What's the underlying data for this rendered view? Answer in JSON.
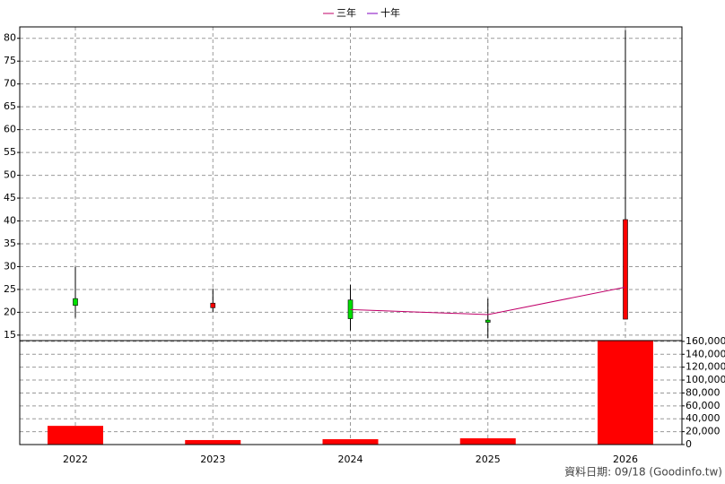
{
  "chart_data": {
    "type": "candlestick",
    "categories": [
      "2022",
      "2023",
      "2024",
      "2025",
      "2026"
    ],
    "open": [
      23,
      21,
      22.7,
      18.3,
      18.5
    ],
    "high": [
      30,
      25.2,
      26,
      23,
      81.8
    ],
    "low": [
      18.8,
      20,
      16,
      14.3,
      18.5
    ],
    "close": [
      21.5,
      22,
      18.6,
      17.8,
      40.3
    ],
    "up_color": "#ff0000",
    "down_color": "#00e000",
    "ylim": [
      13.8,
      82.5
    ],
    "yticks": [
      15,
      20,
      25,
      30,
      35,
      40,
      45,
      50,
      55,
      60,
      65,
      70,
      75,
      80
    ],
    "grid": true,
    "legend": "top",
    "series": [
      {
        "name": "三年",
        "color": "#c0006a",
        "values": [
          null,
          null,
          20.6,
          19.5,
          25.5
        ]
      },
      {
        "name": "十年",
        "color": "#8000c0",
        "values": [
          null,
          null,
          null,
          null,
          null
        ]
      }
    ],
    "volume": {
      "color": "#ff0000",
      "axis": "y2",
      "values": [
        29000,
        7000,
        8300,
        9700,
        162000
      ]
    },
    "y2lim": [
      0,
      164000
    ],
    "y2ticks": [
      0,
      {
        "value": 20000,
        "label": "20,000"
      },
      {
        "value": 40000,
        "label": "40,000"
      },
      {
        "value": 60000,
        "label": "60,000"
      },
      {
        "value": 80000,
        "label": "80,000"
      },
      {
        "value": 100000,
        "label": "100,000"
      },
      {
        "value": 120000,
        "label": "120,000"
      },
      {
        "value": 140000,
        "label": "140,000"
      },
      {
        "value": 160000,
        "label": "160,000"
      }
    ]
  },
  "footer": "資料日期: 09/18 (Goodinfo.tw)"
}
